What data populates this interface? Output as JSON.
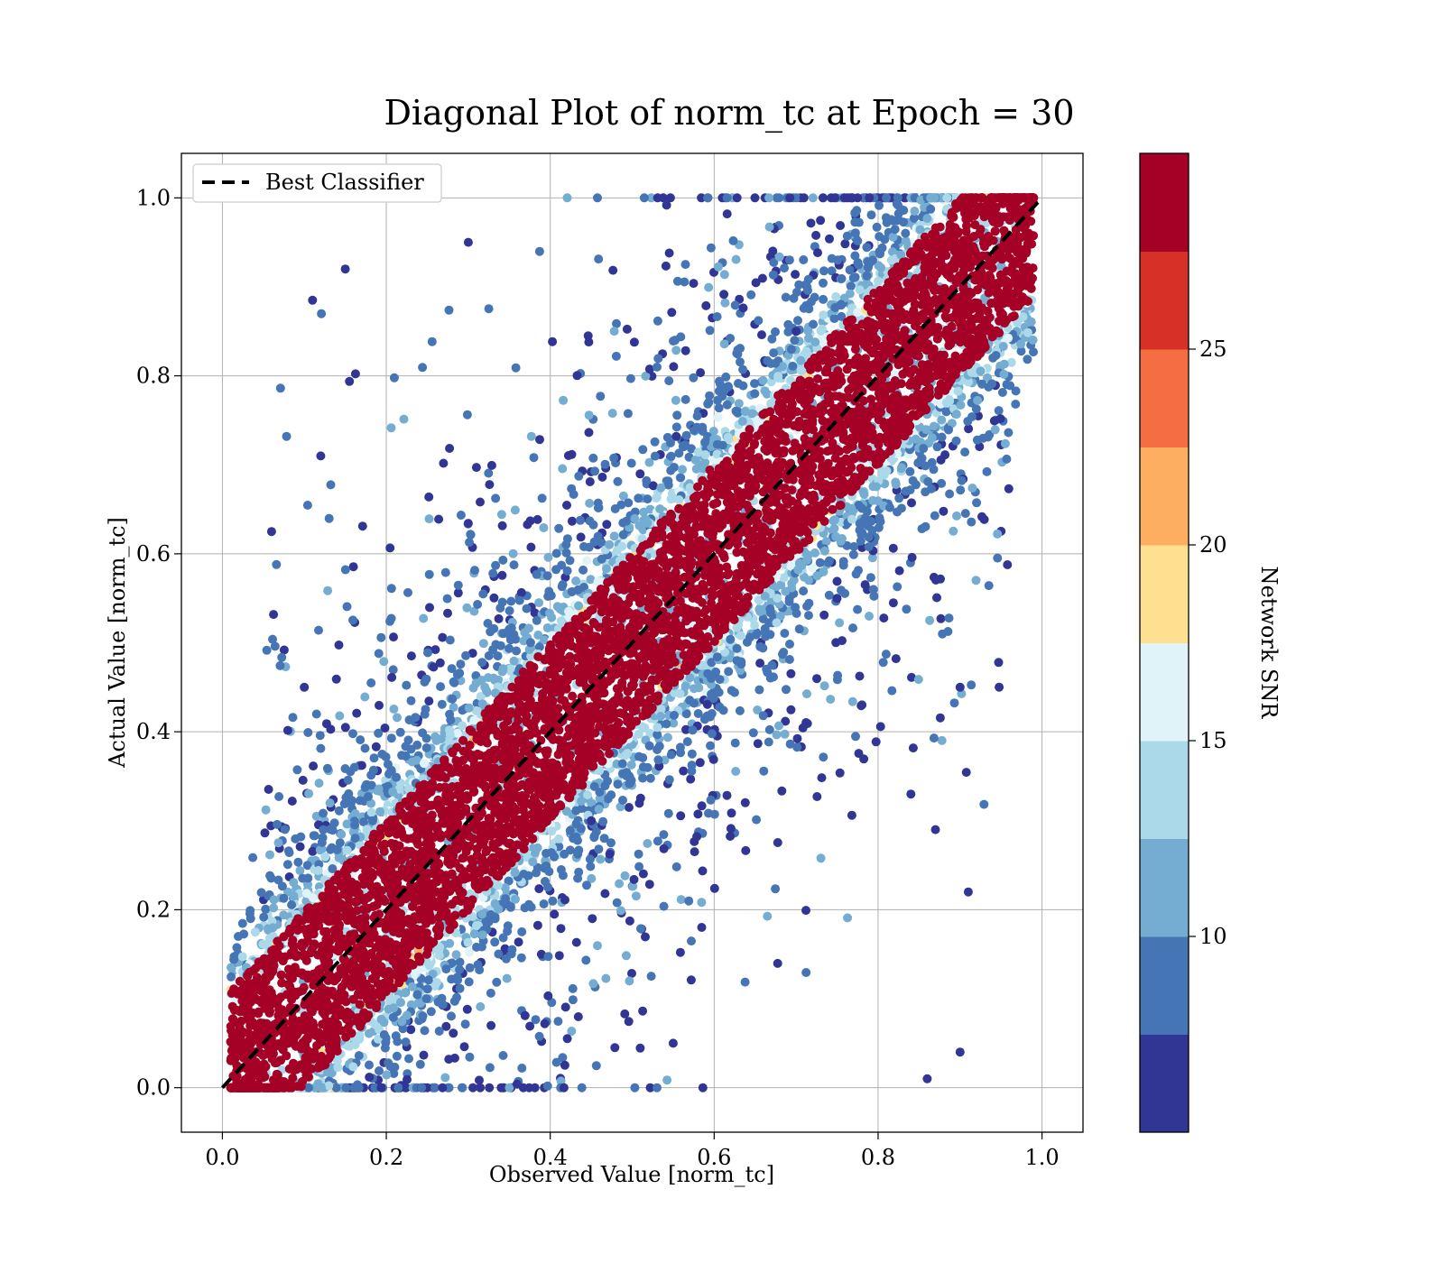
{
  "chart_data": {
    "type": "scatter",
    "title": "Diagonal Plot of norm_tc at Epoch = 30",
    "xlabel": "Observed Value [norm_tc]",
    "ylabel": "Actual Value [norm_tc]",
    "xlim": [
      -0.05,
      1.05
    ],
    "ylim": [
      -0.05,
      1.05
    ],
    "xticks": [
      "0.0",
      "0.2",
      "0.4",
      "0.6",
      "0.8",
      "1.0"
    ],
    "yticks": [
      "0.0",
      "0.2",
      "0.4",
      "0.6",
      "0.8",
      "1.0"
    ],
    "grid": true,
    "legend": {
      "location": "upper-left",
      "entries": [
        "Best Classifier"
      ]
    },
    "reference_line": {
      "label": "Best Classifier",
      "x": [
        0.0,
        1.0
      ],
      "y": [
        0.0,
        1.0
      ],
      "style": "dashed",
      "color": "#000000"
    },
    "colorbar": {
      "label": "Network SNR",
      "range": [
        5,
        30
      ],
      "ticks": [
        "10",
        "15",
        "20",
        "25"
      ],
      "colors": [
        "#313695",
        "#4575b4",
        "#74add1",
        "#abd9e9",
        "#e0f3f8",
        "#fee090",
        "#fdae61",
        "#f46d43",
        "#d73027",
        "#a50026"
      ]
    },
    "series": [
      {
        "color_by": "Network SNR",
        "points_snr_high_band": {
          "description_values": "dense band of points along y = x, width about ±0.1",
          "snr": 29
        },
        "outliers_sample": [
          {
            "x": 0.06,
            "y": 0.625,
            "snr": 6
          },
          {
            "x": 0.11,
            "y": 0.885,
            "snr": 6
          },
          {
            "x": 0.1,
            "y": 0.45,
            "snr": 6
          },
          {
            "x": 0.12,
            "y": 0.71,
            "snr": 6
          },
          {
            "x": 0.9,
            "y": 0.45,
            "snr": 6
          },
          {
            "x": 0.91,
            "y": 0.22,
            "snr": 6
          },
          {
            "x": 0.9,
            "y": 0.04,
            "snr": 6
          },
          {
            "x": 0.86,
            "y": 0.01,
            "snr": 6
          },
          {
            "x": 0.87,
            "y": 0.29,
            "snr": 6
          },
          {
            "x": 0.84,
            "y": 0.33,
            "snr": 6
          },
          {
            "x": 0.15,
            "y": 0.92,
            "snr": 6
          },
          {
            "x": 0.3,
            "y": 0.95,
            "snr": 6
          },
          {
            "x": 0.45,
            "y": 0.3,
            "snr": 6
          },
          {
            "x": 0.55,
            "y": 0.05,
            "snr": 6
          },
          {
            "x": 0.7,
            "y": 0.85,
            "snr": 6
          },
          {
            "x": 0.75,
            "y": 0.55,
            "snr": 6
          }
        ]
      }
    ]
  }
}
